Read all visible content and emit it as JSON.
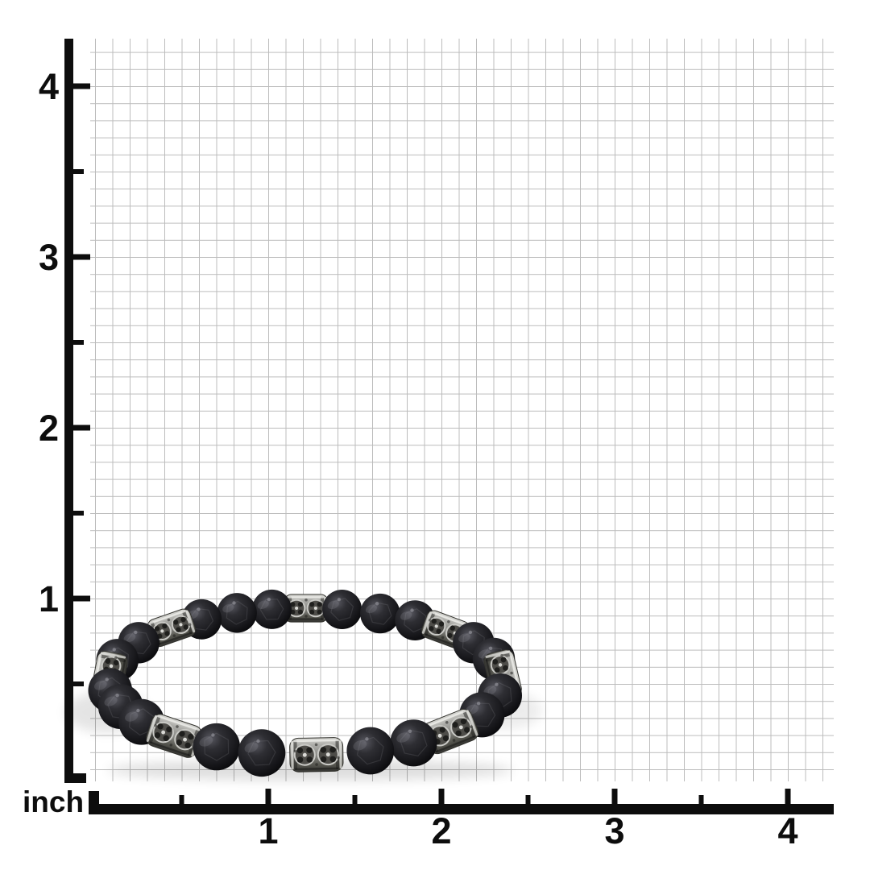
{
  "figure": {
    "type": "product-measurement-photo",
    "subject": "Black faceted stone bead stretch bracelet with antique steel ornate tube beads, photographed on inch graph paper",
    "unit_label": "inch",
    "bracelet_width_inches_on_ruler": 2.5,
    "bracelet_height_inches_on_ruler": 1.1
  },
  "ruler_x": {
    "labels": [
      "1",
      "2",
      "3",
      "4"
    ]
  },
  "ruler_y": {
    "labels": [
      "4",
      "3",
      "2",
      "1"
    ]
  },
  "grid": {
    "cell_inches": 0.1
  },
  "bracelet": {
    "bead_count": 19,
    "tube_count": 8,
    "bead_angles": [
      11,
      27,
      57,
      71,
      103,
      117,
      146.5,
      160,
      173,
      197,
      212,
      238,
      249.5,
      260,
      280.5,
      292,
      303.5,
      328,
      342
    ],
    "tube_angles": [
      43,
      87,
      132,
      184,
      227,
      270,
      315,
      355
    ]
  },
  "colors": {
    "background": "#ffffff",
    "grid_line": "#bcbcbc",
    "ruler": "#0d0d0d",
    "label_text": "#0d0d0d",
    "bead_highlight": "#585860",
    "bead_upper": "#2e2e33",
    "bead_mid": "#1b1b1f",
    "bead_dark": "#050507",
    "tube_light": "#d8d8d4",
    "tube_light2": "#aeaeaa",
    "tube_mid": "#8b8b87",
    "tube_dark2": "#56564f",
    "tube_dark": "#343431",
    "tube_engraving": "#1f1f1d",
    "tube_rim": "#e8e8e4"
  }
}
